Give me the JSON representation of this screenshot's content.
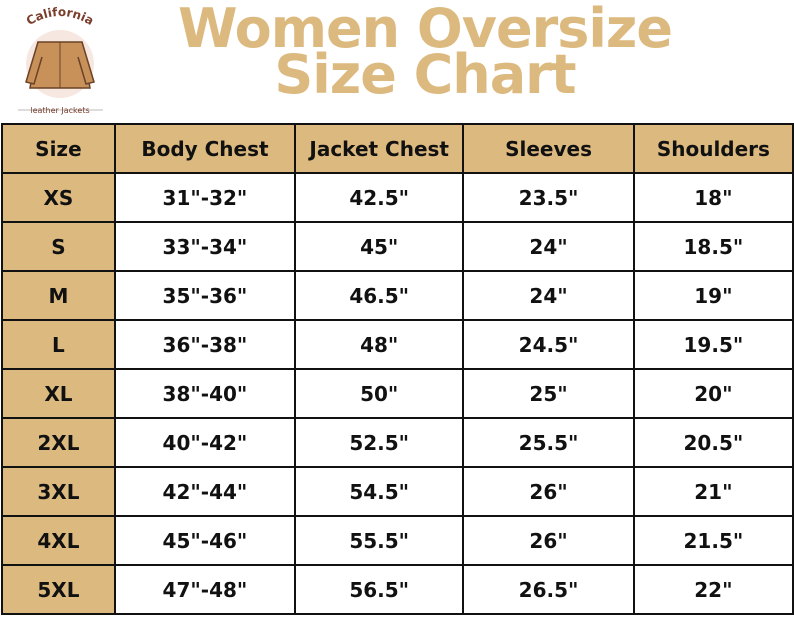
{
  "logo": {
    "top": "California",
    "bottom": "leather Jackets"
  },
  "header": {
    "title": [
      "Women Oversize",
      "Size Chart"
    ]
  },
  "table": {
    "columns": [
      "Size",
      "Body Chest",
      "Jacket Chest",
      "Sleeves",
      "Shoulders"
    ],
    "rows": [
      [
        "XS",
        "31\"-32\"",
        "42.5\"",
        "23.5\"",
        "18\""
      ],
      [
        "S",
        "33\"-34\"",
        "45\"",
        "24\"",
        "18.5\""
      ],
      [
        "M",
        "35\"-36\"",
        "46.5\"",
        "24\"",
        "19\""
      ],
      [
        "L",
        "36\"-38\"",
        "48\"",
        "24.5\"",
        "19.5\""
      ],
      [
        "XL",
        "38\"-40\"",
        "50\"",
        "25\"",
        "20\""
      ],
      [
        "2XL",
        "40\"-42\"",
        "52.5\"",
        "25.5\"",
        "20.5\""
      ],
      [
        "3XL",
        "42\"-44\"",
        "54.5\"",
        "26\"",
        "21\""
      ],
      [
        "4XL",
        "45\"-46\"",
        "55.5\"",
        "26\"",
        "21.5\""
      ],
      [
        "5XL",
        "47\"-48\"",
        "56.5\"",
        "26.5\"",
        "22\""
      ]
    ]
  }
}
